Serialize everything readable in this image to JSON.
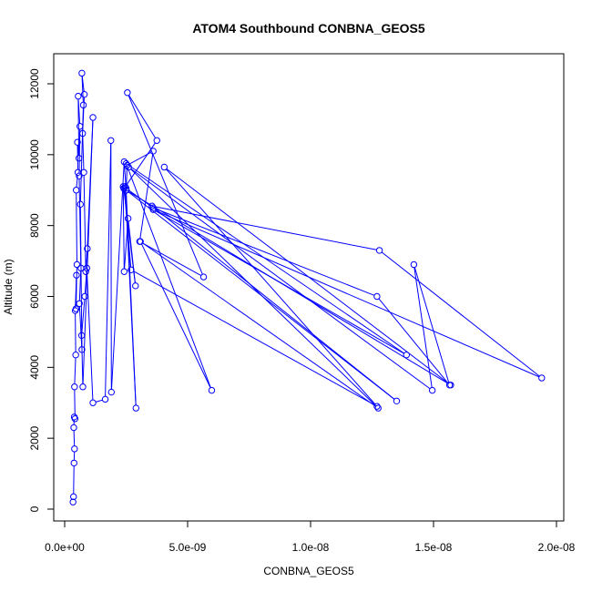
{
  "chart_data": {
    "type": "line",
    "title": "ATOM4 Southbound CONBNA_GEOS5",
    "xlabel": "CONBNA_GEOS5",
    "ylabel": "Altitude (m)",
    "xlim": [
      0,
      2e-08
    ],
    "ylim": [
      0,
      12400
    ],
    "x_ticks": [
      0,
      5e-09,
      1e-08,
      1.5e-08,
      2e-08
    ],
    "x_tick_labels": [
      "0.0e+00",
      "5.0e-09",
      "1.0e-08",
      "1.5e-08",
      "2.0e-08"
    ],
    "y_ticks": [
      0,
      2000,
      4000,
      6000,
      8000,
      10000,
      12000
    ],
    "y_tick_labels": [
      "0",
      "2000",
      "4000",
      "6000",
      "8000",
      "10000",
      "12000"
    ],
    "grid": false,
    "legend": "none",
    "series_color": "#0000ff",
    "series": [
      {
        "style": "line-with-open-circles",
        "x": [
          3.4e-10,
          3.6e-10,
          3.8e-10,
          4e-10,
          3.7e-10,
          3.9e-10,
          4.2e-10,
          4e-10,
          4.5e-10,
          4.3e-10,
          4.8e-10,
          4.6e-10,
          5e-10,
          4.7e-10,
          5.4e-10,
          5.2e-10,
          5.8e-10,
          5.5e-10,
          6.2e-10,
          5.9e-10,
          6.6e-10,
          6e-10,
          7e-10,
          6.4e-10,
          7.6e-10,
          7e-10,
          8e-10,
          7.3e-10,
          7.8e-10,
          8.6e-10,
          9.2e-10,
          1.15e-09,
          7.4e-10,
          6.9e-10,
          8.2e-10,
          9e-10,
          1.15e-09,
          1.65e-09,
          1.88e-09,
          1.9e-09,
          2.42e-09,
          2.5e-09,
          2.38e-09,
          2.42e-09,
          2.58e-09,
          2.88e-09,
          2.4e-09,
          2.46e-09,
          2.9e-09,
          2.5e-09,
          2.54e-09,
          3.6e-09,
          3.05e-09,
          5.65e-09,
          2.55e-09,
          3.75e-09,
          2.42e-09,
          2.7e-09,
          1.27e-08,
          4.05e-09,
          1.57e-08,
          2.5e-09,
          1.35e-08,
          3.55e-09,
          1.28e-08,
          1.94e-08,
          3.6e-09,
          1.39e-08,
          2.5e-09,
          5.98e-09,
          3.08e-09,
          1.275e-08,
          2.6e-09,
          1.495e-08,
          1.42e-08,
          1.565e-08,
          1.27e-08,
          3.6e-09,
          2.5e-09
        ],
        "y": [
          200,
          350,
          1300,
          1700,
          2300,
          2600,
          2550,
          3450,
          4350,
          5600,
          6600,
          5650,
          6900,
          9000,
          9500,
          10350,
          9900,
          11650,
          10800,
          9400,
          6800,
          5800,
          4500,
          8600,
          11400,
          12300,
          11700,
          10600,
          9500,
          6700,
          7350,
          11050,
          3450,
          4900,
          6000,
          6800,
          3000,
          3100,
          10400,
          3300,
          9800,
          9000,
          9100,
          6700,
          8200,
          6300,
          9050,
          9100,
          2850,
          9000,
          9700,
          10100,
          7550,
          6550,
          11750,
          10400,
          9050,
          6750,
          2900,
          9650,
          3500,
          9000,
          3050,
          8550,
          7300,
          3700,
          8450,
          4350,
          9750,
          3350,
          7550,
          2850,
          9650,
          3350,
          6900,
          3500,
          6000,
          8500,
          9050
        ]
      }
    ]
  }
}
